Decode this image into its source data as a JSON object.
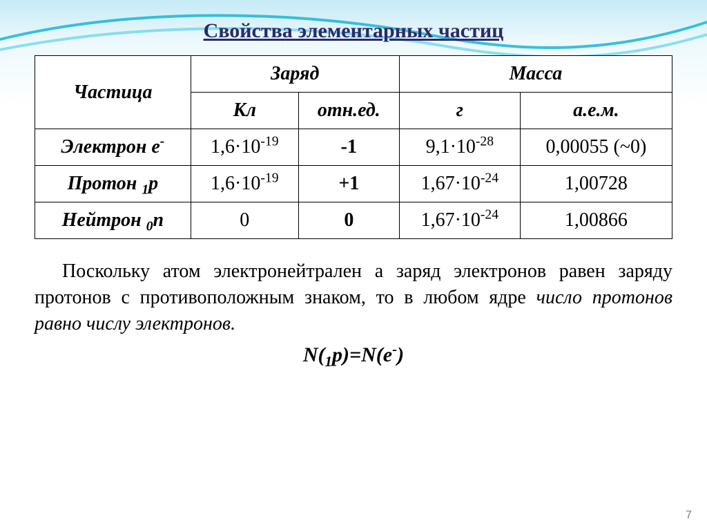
{
  "title": {
    "text": "Свойства элементарных частиц",
    "color": "#2a2a6a",
    "fontsize": 30
  },
  "table": {
    "cell_fontsize": 28,
    "border_color": "#000000",
    "header": {
      "particle": "Частица",
      "charge": "Заряд",
      "mass": "Масса",
      "charge_kl": "Кл",
      "charge_rel": "отн.ед.",
      "mass_g": "г",
      "mass_aem": "а.е.м."
    },
    "rows": [
      {
        "name_html": "Электрон е<sup>-</sup>",
        "kl_html": "1,6·10<sup>-19</sup>",
        "rel": "-1",
        "g_html": "9,1·10<sup>-28</sup>",
        "aem": "0,00055 (~0)"
      },
      {
        "name_html": "Протон <sub>1</sub>р",
        "kl_html": "1,6·10<sup>-19</sup>",
        "rel": "+1",
        "g_html": "1,67·10<sup>-24</sup>",
        "aem": "1,00728"
      },
      {
        "name_html": "Нейтрон <sub>0</sub>n",
        "kl_html": "0",
        "rel": "0",
        "g_html": "1,67·10<sup>-24</sup>",
        "aem": "1,00866"
      }
    ]
  },
  "paragraph": {
    "fontsize": 28,
    "plain1": "Поскольку атом электронейтрален а заряд электронов равен заряду протонов с противоположным знаком, то в любом ядре ",
    "italic": "число протонов равно числу электронов.",
    "plain2": ""
  },
  "formula": {
    "html": "N(<sub>1</sub>p)=N(e<sup>-</sup>)",
    "fontsize": 30
  },
  "page_number": "7",
  "colors": {
    "background_top": "#a0dcf0",
    "background_bottom": "#ffffff",
    "swoosh_primary": "#24b9d6",
    "swoosh_secondary": "#5fd3e8"
  }
}
